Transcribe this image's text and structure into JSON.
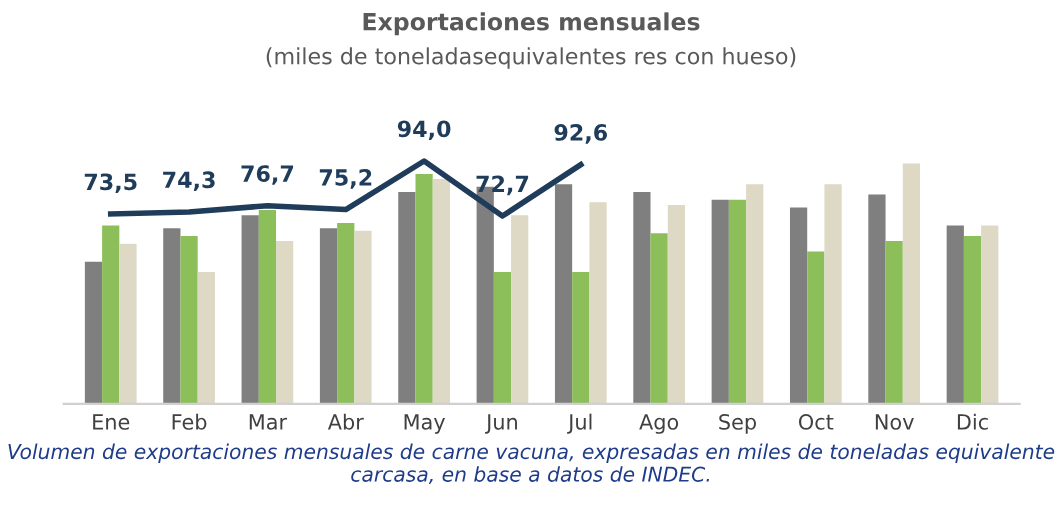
{
  "chart_data": {
    "type": "bar",
    "title": "Exportaciones mensuales",
    "subtitle": "(miles de toneladasequivalentes res con hueso)",
    "categories": [
      "Ene",
      "Feb",
      "Mar",
      "Abr",
      "May",
      "Jun",
      "Jul",
      "Ago",
      "Sep",
      "Oct",
      "Nov",
      "Dic"
    ],
    "series": [
      {
        "color": "#7f7f7f",
        "values": [
          55,
          68,
          73,
          68,
          82,
          84,
          85,
          82,
          79,
          76,
          81,
          69
        ]
      },
      {
        "color": "#8cbf5a",
        "values": [
          69,
          65,
          75,
          70,
          89,
          51,
          51,
          66,
          79,
          59,
          63,
          65
        ]
      },
      {
        "color": "#ddd9c4",
        "values": [
          62,
          51,
          63,
          67,
          87,
          73,
          78,
          77,
          85,
          85,
          93,
          69
        ]
      },
      {
        "type": "line",
        "color": "#1f3c5a",
        "values": [
          73.5,
          74.3,
          76.7,
          75.2,
          94.0,
          72.7,
          92.6,
          null,
          null,
          null,
          null,
          null
        ],
        "value_labels": [
          "73,5",
          "74,3",
          "76,7",
          "75,2",
          "94,0",
          "72,7",
          "92,6",
          null,
          null,
          null,
          null,
          null
        ]
      }
    ],
    "tick_labels": "x",
    "grid": false,
    "annotations": [
      "Volumen de exportaciones mensuales de carne vacuna, expresadas en miles de toneladas equivalente carcasa, en base a datos de INDEC."
    ]
  }
}
